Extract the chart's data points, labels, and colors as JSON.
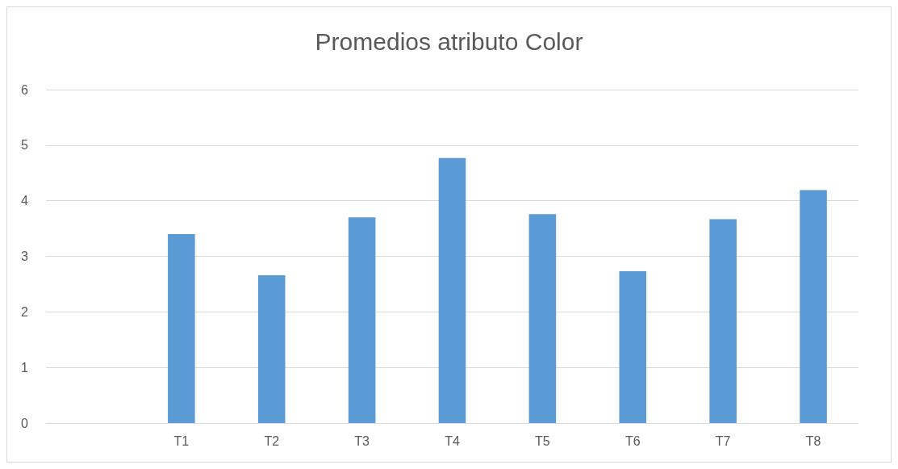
{
  "chart_data": {
    "type": "bar",
    "title": "Promedios atributo Color",
    "categories": [
      null,
      "T1",
      "T2",
      "T3",
      "T4",
      "T5",
      "T6",
      "T7",
      "T8"
    ],
    "values": [
      null,
      3.4,
      2.66,
      3.7,
      4.77,
      3.76,
      2.73,
      3.67,
      4.19
    ],
    "color": "#5b9bd5",
    "ylim": [
      0,
      6
    ],
    "yticks": [
      0,
      1,
      2,
      3,
      4,
      5,
      6
    ],
    "grid": "y"
  }
}
